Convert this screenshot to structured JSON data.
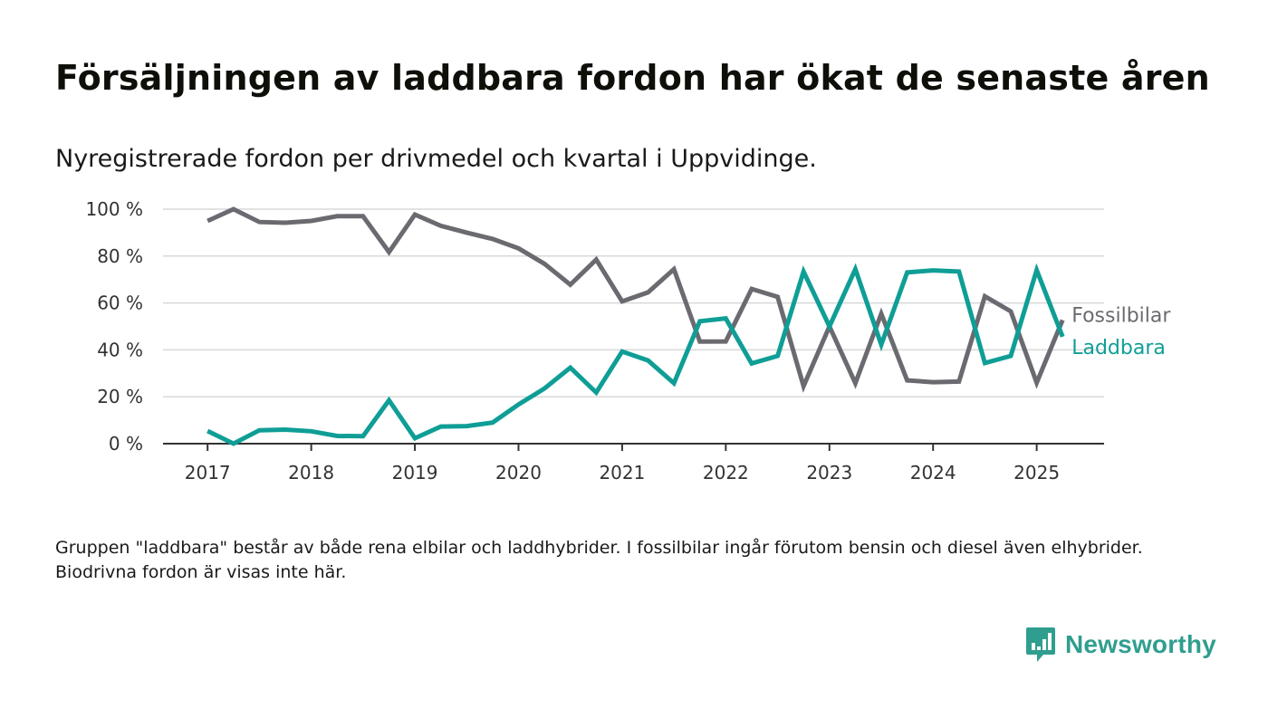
{
  "title": "Försäljningen av laddbara fordon har ökat de senaste åren",
  "subtitle": "Nyregistrerade fordon per drivmedel och kvartal i Uppvidinge.",
  "footnote": "Gruppen \"laddbara\" består av både rena elbilar och laddhybrider. I fossilbilar ingår förutom bensin och diesel även elhybrider. Biodrivna fordon är visas inte här.",
  "logo": {
    "text": "Newsworthy",
    "icon": "bar-chart-speech-bubble-icon",
    "color": "#2f9e8f"
  },
  "chart_data": {
    "type": "line",
    "ylim": [
      0,
      100
    ],
    "y_ticks": [
      0,
      20,
      40,
      60,
      80,
      100
    ],
    "y_tick_labels": [
      "0 %",
      "20 %",
      "40 %",
      "60 %",
      "80 %",
      "100 %"
    ],
    "x_ticks": [
      2017,
      2018,
      2019,
      2020,
      2021,
      2022,
      2023,
      2024,
      2025
    ],
    "x_tick_labels": [
      "2017",
      "2018",
      "2019",
      "2020",
      "2021",
      "2022",
      "2023",
      "2024",
      "2025"
    ],
    "x": [
      2017.0,
      2017.25,
      2017.5,
      2017.75,
      2018.0,
      2018.25,
      2018.5,
      2018.75,
      2019.0,
      2019.25,
      2019.5,
      2019.75,
      2020.0,
      2020.25,
      2020.5,
      2020.75,
      2021.0,
      2021.25,
      2021.5,
      2021.75,
      2022.0,
      2022.25,
      2022.5,
      2022.75,
      2023.0,
      2023.25,
      2023.5,
      2023.75,
      2024.0,
      2024.25,
      2024.5,
      2024.75,
      2025.0,
      2025.25
    ],
    "grid": true,
    "series": [
      {
        "name": "Fossilbilar",
        "color": "#6b6a70",
        "values": [
          95,
          100,
          94.5,
          94.2,
          95,
          97,
          97,
          81.7,
          97.7,
          92.9,
          90,
          87.3,
          83.3,
          76.7,
          67.8,
          78.5,
          60.7,
          64.5,
          74.4,
          43.5,
          43.6,
          66,
          62.6,
          24.5,
          50,
          25.8,
          55.4,
          27,
          26.2,
          26.5,
          62.8,
          56.4,
          26,
          52.7
        ]
      },
      {
        "name": "Laddbara",
        "color": "#0f9e96",
        "values": [
          5.4,
          0,
          5.7,
          6,
          5.3,
          3.3,
          3.2,
          18.5,
          2.3,
          7.3,
          7.5,
          9,
          16.7,
          23.5,
          32.4,
          21.8,
          39.3,
          35.5,
          25.8,
          52.2,
          53.4,
          34.2,
          37.4,
          73.4,
          50,
          74.4,
          42.2,
          73,
          73.9,
          73.4,
          34.4,
          37.4,
          74,
          45.6
        ]
      }
    ]
  }
}
